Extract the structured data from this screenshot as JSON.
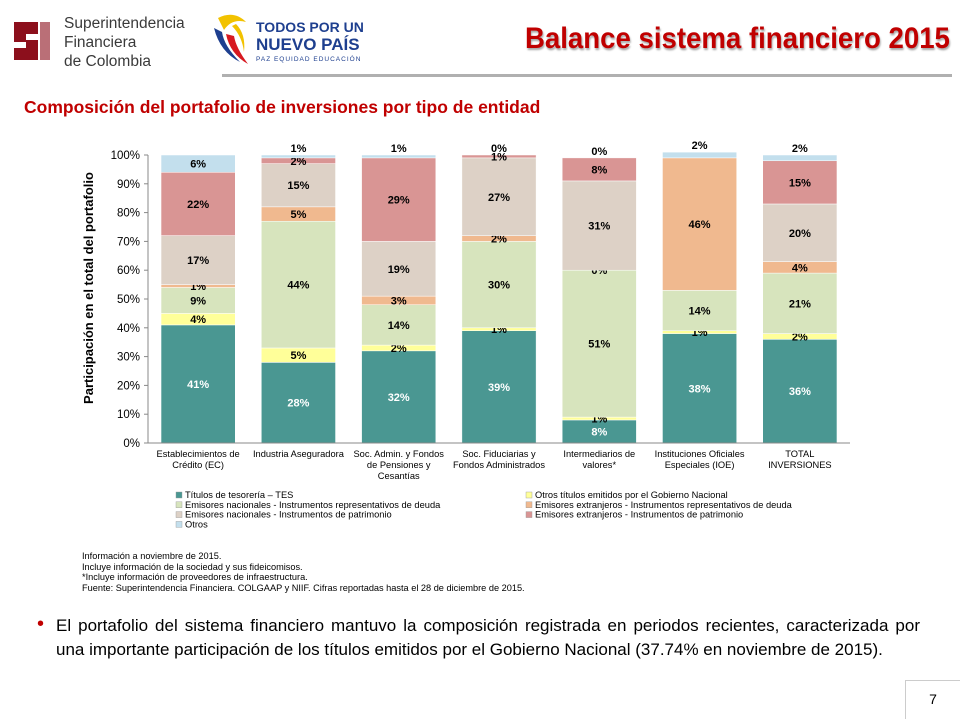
{
  "header": {
    "org_name_line1": "Superintendencia",
    "org_name_line2": "Financiera",
    "org_name_line3": "de Colombia",
    "gov_slogan_line1": "TODOS POR UN",
    "gov_slogan_line2": "NUEVO PAÍS",
    "gov_sub": "PAZ EQUIDAD EDUCACIÓN",
    "title": "Balance sistema financiero 2015"
  },
  "subtitle": "Composición del portafolio de inversiones por tipo de entidad",
  "chart_data": {
    "type": "bar",
    "stacked": true,
    "ylabel": "Participación en el total del portafolio",
    "ylim": [
      0,
      100
    ],
    "yticks": [
      "0%",
      "10%",
      "20%",
      "30%",
      "40%",
      "50%",
      "60%",
      "70%",
      "80%",
      "90%",
      "100%"
    ],
    "categories": [
      [
        "Establecimientos de",
        "Crédito (EC)"
      ],
      [
        "Industria Aseguradora"
      ],
      [
        "Soc. Admin. y Fondos",
        "de Pensiones y",
        "Cesantías"
      ],
      [
        "Soc. Fiduciarias y",
        "Fondos Administrados"
      ],
      [
        "Intermediarios de",
        "valores*"
      ],
      [
        "Instituciones Oficiales",
        "Especiales (IOE)"
      ],
      [
        "TOTAL",
        "INVERSIONES"
      ]
    ],
    "series": [
      {
        "name": "Títulos de tesorería – TES",
        "color": "#4a9792",
        "values": [
          41,
          28,
          32,
          39,
          8,
          38,
          36
        ],
        "label_color": "#ffffff"
      },
      {
        "name": "Otros títulos emitidos por el Gobierno Nacional",
        "color": "#ffff99",
        "values": [
          4,
          5,
          2,
          1,
          1,
          1,
          2
        ],
        "label_color": "#000000"
      },
      {
        "name": "Emisores nacionales - Instrumentos representativos de deuda",
        "color": "#d7e4bd",
        "values": [
          9,
          44,
          14,
          30,
          51,
          14,
          21
        ],
        "label_color": "#000000"
      },
      {
        "name": "Emisores extranjeros - Instrumentos representativos de deuda",
        "color": "#f0b98f",
        "values": [
          1,
          5,
          3,
          2,
          0,
          46,
          4
        ],
        "label_color": "#000000"
      },
      {
        "name": "Emisores nacionales - Instrumentos de patrimonio",
        "color": "#ddd1c6",
        "values": [
          17,
          15,
          19,
          27,
          31,
          0,
          20
        ],
        "label_color": "#000000"
      },
      {
        "name": "Emisores extranjeros - Instrumentos de patrimonio",
        "color": "#d99594",
        "values": [
          22,
          2,
          29,
          1,
          8,
          0,
          15
        ],
        "label_color": "#000000"
      },
      {
        "name": "Otros",
        "color": "#c3dfed",
        "values": [
          6,
          1,
          1,
          0,
          0,
          2,
          2
        ],
        "label_color": "#000000"
      }
    ],
    "labels": [
      [
        "41%",
        "4%",
        "9%",
        "1%",
        "17%",
        "22%",
        "6%"
      ],
      [
        "28%",
        "5%",
        "44%",
        "5%",
        "15%",
        "2%",
        "1%"
      ],
      [
        "32%",
        "2%",
        "14%",
        "3%",
        "19%",
        "29%",
        "1%"
      ],
      [
        "39%",
        "1%",
        "30%",
        "2%",
        "27%",
        "1%",
        "0%"
      ],
      [
        "8%",
        "1%",
        "51%",
        "0%",
        "31%",
        "8%",
        "0%"
      ],
      [
        "38%",
        "1%",
        "14%",
        "46%",
        "",
        "",
        "2%"
      ],
      [
        "36%",
        "2%",
        "21%",
        "4%",
        "20%",
        "15%",
        "2%"
      ]
    ],
    "legend_placement": "bottom"
  },
  "notes": [
    "Información  a noviembre de 2015.",
    " Incluye información  de la sociedad y sus fideicomisos.",
    "*Incluye información de proveedores de infraestructura.",
    "Fuente: Superintendencia  Financiera.  COLGAAP y NIIF.  Cifras reportadas hasta el 28 de diciembre de 2015."
  ],
  "bullet": "El portafolio del sistema financiero mantuvo la composición registrada en periodos recientes, caracterizada por una importante participación de los títulos emitidos por el Gobierno Nacional (37.74% en noviembre de 2015).",
  "page_number": "7"
}
